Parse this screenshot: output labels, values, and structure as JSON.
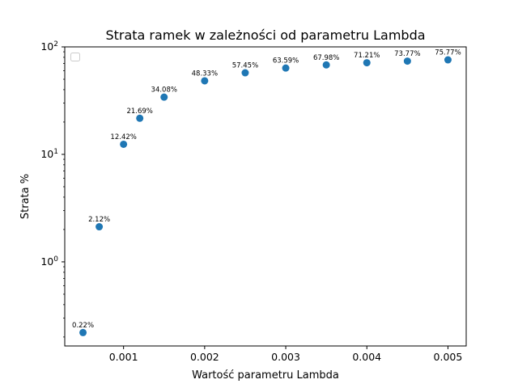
{
  "chart_data": {
    "type": "scatter",
    "title": "Strata ramek w zależności od parametru Lambda",
    "xlabel": "Wartość parametru Lambda",
    "ylabel": "Strata %",
    "x": [
      0.0005,
      0.0007,
      0.001,
      0.0012,
      0.0015,
      0.002,
      0.0025,
      0.003,
      0.0035,
      0.004,
      0.0045,
      0.005
    ],
    "y": [
      0.22,
      2.12,
      12.42,
      21.69,
      34.08,
      48.33,
      57.45,
      63.59,
      67.98,
      71.21,
      73.77,
      75.77
    ],
    "point_labels": [
      "0.22%",
      "2.12%",
      "12.42%",
      "21.69%",
      "34.08%",
      "48.33%",
      "57.45%",
      "63.59%",
      "67.98%",
      "71.21%",
      "73.77%",
      "75.77%"
    ],
    "x_ticks": [
      {
        "value": 0.001,
        "label": "0.001"
      },
      {
        "value": 0.002,
        "label": "0.002"
      },
      {
        "value": 0.003,
        "label": "0.003"
      },
      {
        "value": 0.004,
        "label": "0.004"
      },
      {
        "value": 0.005,
        "label": "0.005"
      }
    ],
    "y_ticks": [
      {
        "value": 1,
        "base": "10",
        "exp": "0"
      },
      {
        "value": 10,
        "base": "10",
        "exp": "1"
      },
      {
        "value": 100,
        "base": "10",
        "exp": "2"
      }
    ],
    "xlim": [
      0.000275,
      0.005225
    ],
    "ylim": [
      0.165,
      100
    ],
    "yscale": "log",
    "grid": false,
    "legend": "upper-left (empty)",
    "marker_color": "#1f77b4"
  }
}
